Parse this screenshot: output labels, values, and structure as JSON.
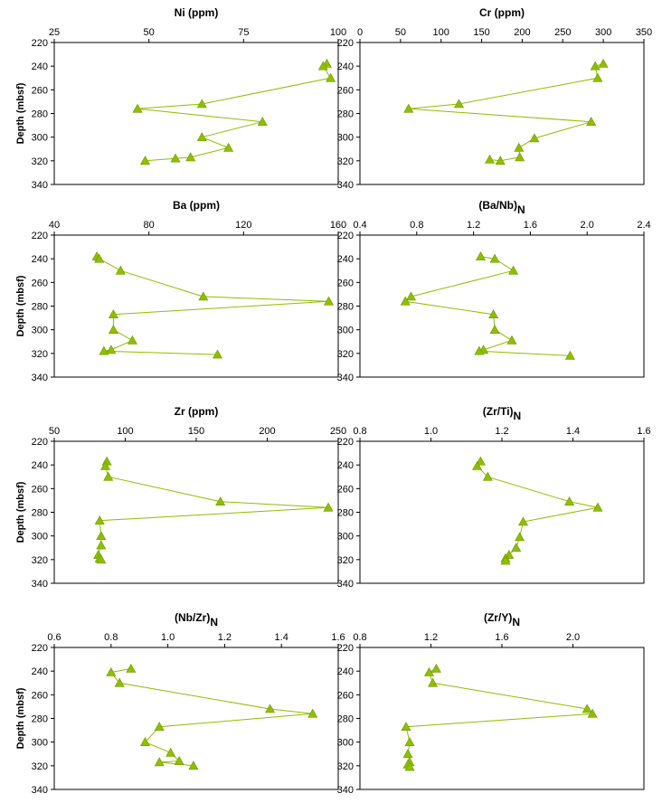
{
  "chart_data": [
    {
      "type": "line",
      "title": "Ni (ppm)",
      "title_main": "Ni (ppm)",
      "title_sub": "",
      "xlabel": "",
      "ylabel": "Depth (mbsf)",
      "xlim": [
        25,
        100
      ],
      "ylim": [
        220,
        340
      ],
      "xticks": [
        "25",
        "50",
        "75",
        "100"
      ],
      "yticks": [
        "220",
        "240",
        "260",
        "280",
        "300",
        "320",
        "340"
      ],
      "y_inverted": true,
      "grid": false,
      "color": "#8fbe00",
      "series": [
        {
          "x": [
            97,
            96,
            98,
            64,
            47,
            80,
            64,
            71,
            61,
            57,
            49
          ],
          "y": [
            238,
            240,
            250,
            272,
            276,
            287,
            300,
            309,
            317,
            318,
            320
          ]
        }
      ]
    },
    {
      "type": "line",
      "title": "Cr (ppm)",
      "title_main": "Cr (ppm)",
      "title_sub": "",
      "xlabel": "",
      "ylabel": "",
      "xlim": [
        0,
        350
      ],
      "ylim": [
        220,
        340
      ],
      "xticks": [
        "0",
        "50",
        "100",
        "150",
        "200",
        "250",
        "300",
        "350"
      ],
      "yticks": [
        "220",
        "240",
        "260",
        "280",
        "300",
        "320",
        "340"
      ],
      "y_inverted": true,
      "grid": false,
      "color": "#8fbe00",
      "series": [
        {
          "x": [
            300,
            290,
            293,
            122,
            60,
            285,
            215,
            196,
            197,
            173,
            160
          ],
          "y": [
            238,
            240,
            250,
            272,
            276,
            287,
            301,
            309,
            317,
            320,
            319
          ]
        }
      ]
    },
    {
      "type": "line",
      "title": "Ba (ppm)",
      "title_main": "Ba (ppm)",
      "title_sub": "",
      "xlabel": "",
      "ylabel": "Depth (mbsf)",
      "xlim": [
        40,
        160
      ],
      "ylim": [
        220,
        340
      ],
      "xticks": [
        "40",
        "80",
        "120",
        "160"
      ],
      "yticks": [
        "220",
        "240",
        "260",
        "280",
        "300",
        "320",
        "340"
      ],
      "y_inverted": true,
      "grid": false,
      "color": "#8fbe00",
      "series": [
        {
          "x": [
            58,
            59,
            68,
            103,
            156,
            65,
            65,
            73,
            64,
            61,
            109
          ],
          "y": [
            238,
            240,
            250,
            272,
            276,
            287,
            300,
            309,
            317,
            318,
            321
          ]
        }
      ]
    },
    {
      "type": "line",
      "title": "(Ba/Nb)N",
      "title_main": "(Ba/Nb)",
      "title_sub": "N",
      "xlabel": "",
      "ylabel": "",
      "xlim": [
        0.4,
        2.4
      ],
      "ylim": [
        220,
        340
      ],
      "xticks": [
        "0.4",
        "0.8",
        "1.2",
        "1.6",
        "2.0",
        "2.4"
      ],
      "yticks": [
        "220",
        "240",
        "260",
        "280",
        "300",
        "320",
        "340"
      ],
      "y_inverted": true,
      "grid": false,
      "color": "#8fbe00",
      "series": [
        {
          "x": [
            1.25,
            1.35,
            1.48,
            0.76,
            0.72,
            1.34,
            1.35,
            1.47,
            1.27,
            1.24,
            1.88
          ],
          "y": [
            238,
            240,
            250,
            272,
            276,
            287,
            300,
            309,
            317,
            318,
            322
          ]
        }
      ]
    },
    {
      "type": "line",
      "title": "Zr (ppm)",
      "title_main": "Zr (ppm)",
      "title_sub": "",
      "xlabel": "",
      "ylabel": "Depth (mbsf)",
      "xlim": [
        50,
        250
      ],
      "ylim": [
        220,
        340
      ],
      "xticks": [
        "50",
        "100",
        "150",
        "200",
        "250"
      ],
      "yticks": [
        "220",
        "240",
        "260",
        "280",
        "300",
        "320",
        "340"
      ],
      "y_inverted": true,
      "grid": false,
      "color": "#8fbe00",
      "series": [
        {
          "x": [
            87,
            86,
            88,
            167,
            243,
            82,
            83,
            83,
            81,
            82,
            83
          ],
          "y": [
            237,
            241,
            250,
            271,
            276,
            287,
            300,
            308,
            316,
            319,
            320
          ]
        }
      ]
    },
    {
      "type": "line",
      "title": "(Zr/Ti)N",
      "title_main": "(Zr/Ti)",
      "title_sub": "N",
      "xlabel": "",
      "ylabel": "",
      "xlim": [
        0.8,
        1.6
      ],
      "ylim": [
        220,
        340
      ],
      "xticks": [
        "0.8",
        "1.0",
        "1.2",
        "1.4",
        "1.6"
      ],
      "yticks": [
        "220",
        "240",
        "260",
        "280",
        "300",
        "320",
        "340"
      ],
      "y_inverted": true,
      "grid": false,
      "color": "#8fbe00",
      "series": [
        {
          "x": [
            1.14,
            1.13,
            1.16,
            1.39,
            1.47,
            1.26,
            1.25,
            1.24,
            1.22,
            1.21,
            1.21
          ],
          "y": [
            237,
            241,
            250,
            271,
            276,
            288,
            301,
            310,
            316,
            319,
            321
          ]
        }
      ]
    },
    {
      "type": "line",
      "title": "(Nb/Zr)N",
      "title_main": "(Nb/Zr)",
      "title_sub": "N",
      "xlabel": "",
      "ylabel": "Depth (mbsf)",
      "xlim": [
        0.6,
        1.6
      ],
      "ylim": [
        220,
        340
      ],
      "xticks": [
        "0.6",
        "0.8",
        "1.0",
        "1.2",
        "1.4",
        "1.6"
      ],
      "yticks": [
        "220",
        "240",
        "260",
        "280",
        "300",
        "320",
        "340"
      ],
      "y_inverted": true,
      "grid": false,
      "color": "#8fbe00",
      "series": [
        {
          "x": [
            0.87,
            0.8,
            0.83,
            1.36,
            1.51,
            0.97,
            0.92,
            1.01,
            1.04,
            0.97,
            1.09
          ],
          "y": [
            238,
            241,
            250,
            272,
            276,
            287,
            300,
            309,
            316,
            317,
            320
          ]
        }
      ]
    },
    {
      "type": "line",
      "title": "(Zr/Y)N",
      "title_main": "(Zr/Y)",
      "title_sub": "N",
      "xlabel": "",
      "ylabel": "",
      "xlim": [
        0.8,
        2.4
      ],
      "ylim": [
        220,
        340
      ],
      "xticks": [
        "0.8",
        "1.2",
        "1.6",
        "2.0"
      ],
      "yticks": [
        "220",
        "240",
        "260",
        "280",
        "300",
        "320",
        "340"
      ],
      "y_inverted": true,
      "grid": false,
      "color": "#8fbe00",
      "series": [
        {
          "x": [
            1.23,
            1.19,
            1.21,
            2.08,
            2.11,
            1.06,
            1.08,
            1.07,
            1.08,
            1.07,
            1.08
          ],
          "y": [
            238,
            241,
            250,
            272,
            276,
            287,
            300,
            310,
            317,
            319,
            321
          ]
        }
      ]
    }
  ]
}
